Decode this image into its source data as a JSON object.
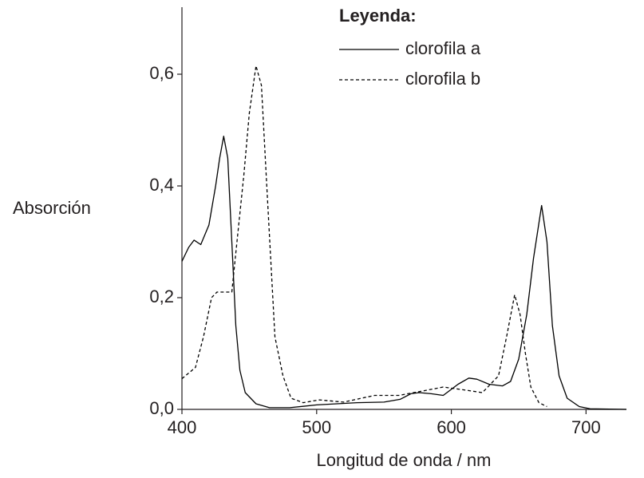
{
  "chart_data": {
    "type": "line",
    "x_label": "Longitud de onda / nm",
    "y_label": "Absorción",
    "legend_title": "Leyenda:",
    "xlim": [
      400,
      730
    ],
    "ylim": [
      0,
      0.72
    ],
    "xticks": [
      400,
      500,
      600,
      700
    ],
    "yticks": [
      {
        "value": 0,
        "label": "0,0"
      },
      {
        "value": 0.2,
        "label": "0,2"
      },
      {
        "value": 0.4,
        "label": "0,4"
      },
      {
        "value": 0.6,
        "label": "0,6"
      }
    ],
    "series": [
      {
        "name": "clorofila a",
        "color": "#000000",
        "dash": "solid",
        "x": [
          400,
          405,
          409,
          414,
          420,
          425,
          428,
          431,
          434,
          437,
          440,
          443,
          447,
          455,
          465,
          480,
          500,
          530,
          550,
          562,
          570,
          576,
          585,
          594,
          605,
          613,
          619,
          628,
          638,
          644,
          650,
          656,
          661,
          667,
          671,
          675,
          680,
          686,
          695,
          703,
          730
        ],
        "values": [
          0.265,
          0.29,
          0.303,
          0.295,
          0.33,
          0.4,
          0.45,
          0.489,
          0.45,
          0.3,
          0.15,
          0.07,
          0.03,
          0.01,
          0.003,
          0.003,
          0.008,
          0.012,
          0.013,
          0.018,
          0.028,
          0.03,
          0.028,
          0.025,
          0.045,
          0.056,
          0.054,
          0.045,
          0.042,
          0.05,
          0.09,
          0.17,
          0.27,
          0.365,
          0.3,
          0.15,
          0.06,
          0.02,
          0.005,
          0.001,
          0
        ]
      },
      {
        "name": "clorofila b",
        "color": "#000000",
        "dash": "dashed",
        "x": [
          400,
          410,
          416,
          422,
          426,
          437,
          440,
          446,
          450,
          455,
          459,
          463,
          469,
          475,
          481,
          490,
          502,
          520,
          543,
          561,
          579,
          594,
          609,
          623,
          635,
          641,
          647,
          651,
          655,
          659,
          665,
          671
        ],
        "values": [
          0.055,
          0.075,
          0.13,
          0.2,
          0.21,
          0.21,
          0.28,
          0.42,
          0.53,
          0.615,
          0.58,
          0.4,
          0.13,
          0.06,
          0.02,
          0.012,
          0.017,
          0.013,
          0.025,
          0.025,
          0.033,
          0.04,
          0.035,
          0.03,
          0.06,
          0.13,
          0.205,
          0.17,
          0.1,
          0.04,
          0.012,
          0.005
        ]
      }
    ]
  }
}
